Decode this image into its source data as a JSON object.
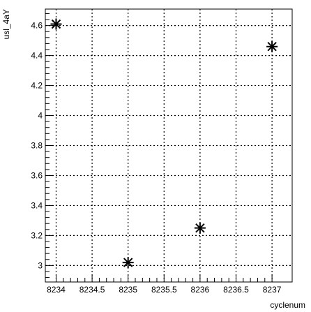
{
  "chart_data": {
    "type": "scatter",
    "xlabel": "cyclenum",
    "ylabel": "usl_4aY",
    "xlim": [
      8233.85,
      8237.28
    ],
    "ylim": [
      2.89,
      4.71
    ],
    "grid": true,
    "xticks": [
      8234,
      8234.5,
      8235,
      8235.5,
      8236,
      8236.5,
      8237
    ],
    "xtick_labels": [
      "8234",
      "8234.5",
      "8235",
      "8235.5",
      "8236",
      "8236.5",
      "8237"
    ],
    "yticks": [
      3,
      3.2,
      3.4,
      3.6,
      3.8,
      4,
      4.2,
      4.4,
      4.6
    ],
    "ytick_labels": [
      "3",
      "3.2",
      "3.4",
      "3.6",
      "3.8",
      "4",
      "4.2",
      "4.4",
      "4.6"
    ],
    "series": [
      {
        "marker": "asterisk",
        "x": [
          8234,
          8235,
          8236,
          8237
        ],
        "y": [
          4.61,
          3.02,
          3.25,
          4.46
        ]
      }
    ]
  }
}
